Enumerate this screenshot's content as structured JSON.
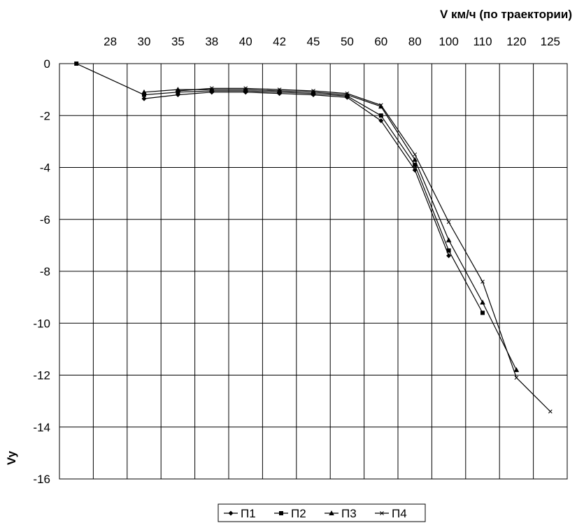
{
  "chart_data": {
    "type": "line",
    "xlabel": "V км/ч (по траектории)",
    "ylabel": "Vy",
    "categories": [
      "",
      "28",
      "30",
      "35",
      "38",
      "40",
      "42",
      "45",
      "50",
      "60",
      "80",
      "100",
      "110",
      "120",
      "125"
    ],
    "ylim": [
      -16,
      0
    ],
    "yticks": [
      0,
      -2,
      -4,
      -6,
      -8,
      -10,
      -12,
      -14,
      -16
    ],
    "grid": true,
    "legend_position": "bottom",
    "series": [
      {
        "name": "П1",
        "marker": "diamond",
        "values": [
          null,
          null,
          -1.35,
          -1.2,
          -1.1,
          -1.1,
          -1.15,
          -1.2,
          -1.3,
          -2.2,
          -4.1,
          -7.4,
          null,
          null,
          null
        ]
      },
      {
        "name": "П2",
        "marker": "square",
        "values": [
          0,
          null,
          -1.2,
          -1.1,
          -1.05,
          -1.05,
          -1.1,
          -1.15,
          -1.25,
          -2.0,
          -3.9,
          -7.2,
          -9.6,
          null,
          null
        ]
      },
      {
        "name": "П3",
        "marker": "triangle",
        "values": [
          null,
          null,
          -1.1,
          -1.0,
          -1.0,
          -1.0,
          -1.05,
          -1.1,
          -1.2,
          -1.65,
          -3.7,
          -6.8,
          -9.2,
          -11.8,
          null
        ]
      },
      {
        "name": "П4",
        "marker": "cross",
        "values": [
          null,
          null,
          null,
          -1.05,
          -0.95,
          -0.95,
          -1.0,
          -1.05,
          -1.15,
          -1.6,
          -3.5,
          -6.1,
          -8.4,
          -12.1,
          -13.4
        ]
      }
    ]
  }
}
